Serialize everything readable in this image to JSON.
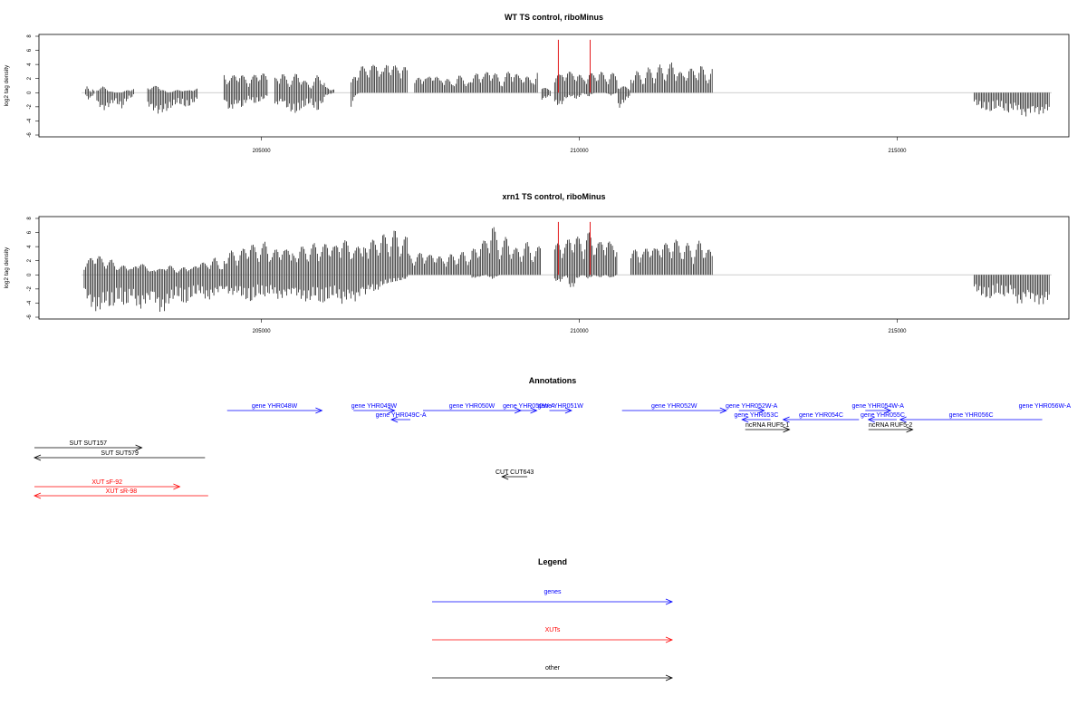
{
  "chart_data": [
    {
      "type": "bar",
      "title": "WT TS control, riboMinus",
      "ylabel": "log2 tag density",
      "xlim": [
        201500,
        217700
      ],
      "ylim": [
        -6,
        8
      ],
      "xticks": [
        205000,
        210000,
        215000
      ],
      "yticks": [
        -6,
        -4,
        -2,
        0,
        2,
        4,
        6,
        8
      ],
      "grid": false,
      "baseline_color": "#bdbdbd",
      "bar_color": "#000000",
      "highlight_color": "#e41a1c",
      "highlight_lines": [
        {
          "x": 209670,
          "y": 7.5
        },
        {
          "x": 210170,
          "y": 7.5
        }
      ],
      "segments": [
        {
          "x": [
            202200,
            202400
          ],
          "positive": [
            0,
            1.2,
            0.5,
            0,
            0.8,
            0
          ],
          "negative": [
            0,
            0.6,
            1.0,
            0.8,
            0.3,
            0
          ]
        },
        {
          "x": [
            202400,
            203000
          ],
          "positive": [
            0.5,
            0.9,
            0.3,
            0,
            0,
            0.4,
            0.6
          ],
          "negative": [
            1.5,
            2.6,
            2.0,
            1.2,
            2.4,
            1.0,
            0.5
          ]
        },
        {
          "x": [
            203200,
            204000
          ],
          "positive": [
            0.8,
            1.0,
            0,
            0.4,
            0.3,
            0.6
          ],
          "negative": [
            1.8,
            3.0,
            2.6,
            1.5,
            2.2,
            1.0
          ]
        },
        {
          "x": [
            204400,
            205100
          ],
          "positive": [
            2.8,
            2.0,
            3.0,
            2.5,
            1.8,
            2.6,
            3.2,
            2.2
          ],
          "negative": [
            1.0,
            2.8,
            1.5,
            2.2,
            0.8,
            1.6,
            1.2,
            0.5
          ]
        },
        {
          "x": [
            205200,
            206000
          ],
          "positive": [
            2.2,
            3.0,
            1.5,
            2.8,
            2.0,
            1.0,
            2.5,
            1.8
          ],
          "negative": [
            2.0,
            1.2,
            2.6,
            3.0,
            2.2,
            1.5,
            2.8,
            1.0
          ]
        },
        {
          "x": [
            206000,
            206150
          ],
          "positive": [
            0.8,
            0.5
          ],
          "negative": [
            0.4,
            0
          ]
        },
        {
          "x": [
            206400,
            207300
          ],
          "positive": [
            1.5,
            3.0,
            4.0,
            3.5,
            4.5,
            3.8,
            4.6,
            3.0,
            5.0,
            4.2,
            3.5,
            4.8,
            3.2
          ],
          "negative": [
            2.0,
            0.3,
            0,
            0,
            0,
            0,
            0,
            0,
            0,
            0,
            0,
            0,
            0
          ]
        },
        {
          "x": [
            207400,
            208300
          ],
          "positive": [
            1.5,
            2.8,
            2.0,
            3.2,
            1.8,
            2.5,
            1.2,
            2.6,
            2.0,
            1.5
          ],
          "negative": [
            0,
            0,
            0,
            0,
            0,
            0,
            0,
            0,
            0,
            0
          ]
        },
        {
          "x": [
            208300,
            209350
          ],
          "positive": [
            1.8,
            3.2,
            2.5,
            3.5,
            2.8,
            1.5,
            3.0,
            3.4,
            2.2,
            2.8,
            1.6,
            3.2
          ],
          "negative": [
            0,
            0,
            0,
            0,
            0,
            0,
            0,
            0,
            0,
            0,
            0,
            0
          ]
        },
        {
          "x": [
            209400,
            209550
          ],
          "positive": [
            0.8,
            0.5
          ],
          "negative": [
            1.0,
            0.5
          ]
        },
        {
          "x": [
            209600,
            210600
          ],
          "positive": [
            3.0,
            2.5,
            3.5,
            2.8,
            3.2,
            2.0,
            3.0,
            2.6,
            3.4,
            2.2,
            3.0,
            2.4
          ],
          "negative": [
            1.5,
            2.0,
            0.8,
            0.5,
            1.0,
            0,
            0.6,
            0,
            0,
            0,
            0.4,
            0
          ]
        },
        {
          "x": [
            210600,
            210800
          ],
          "positive": [
            1.0,
            0.8
          ],
          "negative": [
            2.4,
            0.5
          ]
        },
        {
          "x": [
            210800,
            212100
          ],
          "positive": [
            2.5,
            3.2,
            2.0,
            3.6,
            2.8,
            4.0,
            3.0,
            4.4,
            3.4,
            2.6,
            3.8,
            3.0,
            4.2,
            2.4,
            3.5
          ],
          "negative": [
            0,
            0,
            0,
            0,
            0,
            0,
            0,
            0,
            0,
            0,
            0,
            0,
            0,
            0,
            0
          ]
        },
        {
          "x": [
            216200,
            217400
          ],
          "positive": [
            0,
            0,
            0,
            0,
            0,
            0,
            0,
            0,
            0,
            0
          ],
          "negative": [
            1.5,
            2.4,
            2.8,
            2.0,
            3.0,
            2.2,
            3.6,
            2.6,
            3.2,
            2.4
          ]
        }
      ]
    },
    {
      "type": "bar",
      "title": "xrn1 TS control, riboMinus",
      "ylabel": "log2 tag density",
      "xlim": [
        201500,
        217700
      ],
      "ylim": [
        -6,
        8
      ],
      "xticks": [
        205000,
        210000,
        215000
      ],
      "yticks": [
        -6,
        -4,
        -2,
        0,
        2,
        4,
        6,
        8
      ],
      "grid": false,
      "baseline_color": "#bdbdbd",
      "bar_color": "#000000",
      "highlight_color": "#e41a1c",
      "highlight_lines": [
        {
          "x": 209670,
          "y": 7.5
        },
        {
          "x": 210170,
          "y": 7.5
        }
      ],
      "segments": [
        {
          "x": [
            202200,
            203300
          ],
          "positive": [
            1.5,
            2.5,
            3.0,
            1.8,
            2.2,
            1.0,
            1.5,
            0.8,
            2.0,
            1.2,
            0.6
          ],
          "negative": [
            2.5,
            4.5,
            5.5,
            4.0,
            5.0,
            3.5,
            4.8,
            3.0,
            5.2,
            4.0,
            3.2
          ]
        },
        {
          "x": [
            203300,
            204400
          ],
          "positive": [
            1.0,
            0.8,
            1.5,
            0.5,
            1.2,
            0.9,
            2.0,
            1.5,
            2.5,
            1.0
          ],
          "negative": [
            3.5,
            5.8,
            4.0,
            3.0,
            4.5,
            3.2,
            2.5,
            3.8,
            2.8,
            2.0
          ]
        },
        {
          "x": [
            204400,
            205500
          ],
          "positive": [
            2.5,
            3.5,
            2.8,
            4.0,
            4.5,
            3.6,
            4.8,
            3.0,
            4.2,
            3.5,
            4.6
          ],
          "negative": [
            2.0,
            3.0,
            2.5,
            3.5,
            4.0,
            2.8,
            3.2,
            2.4,
            3.6,
            3.0,
            2.6
          ]
        },
        {
          "x": [
            205500,
            206600
          ],
          "positive": [
            3.0,
            4.2,
            3.5,
            4.6,
            3.8,
            5.0,
            4.0,
            5.5,
            4.4,
            3.6,
            5.2
          ],
          "negative": [
            2.6,
            3.4,
            4.0,
            3.0,
            4.4,
            3.6,
            2.8,
            4.2,
            3.2,
            3.8,
            2.4
          ]
        },
        {
          "x": [
            206600,
            207300
          ],
          "positive": [
            4.0,
            5.5,
            4.5,
            6.0,
            5.0,
            6.5,
            4.8,
            5.6
          ],
          "negative": [
            3.0,
            2.0,
            2.5,
            1.5,
            1.2,
            1.0,
            0.8,
            0.5
          ]
        },
        {
          "x": [
            207300,
            208300
          ],
          "positive": [
            3.0,
            2.5,
            3.5,
            2.8,
            3.2,
            2.2,
            3.0,
            2.6,
            3.4,
            2.4
          ],
          "negative": [
            0,
            0,
            0,
            0,
            0,
            0,
            0,
            0,
            0,
            0
          ]
        },
        {
          "x": [
            208300,
            209400
          ],
          "positive": [
            3.5,
            4.5,
            5.0,
            7.5,
            4.2,
            5.5,
            4.0,
            3.6,
            4.8,
            3.2,
            4.4
          ],
          "negative": [
            0.5,
            0.3,
            0,
            0.6,
            0,
            0,
            0,
            0,
            0,
            0,
            0
          ]
        },
        {
          "x": [
            209600,
            210600
          ],
          "positive": [
            4.0,
            5.0,
            4.5,
            6.0,
            5.5,
            4.8,
            6.2,
            5.0,
            4.6,
            5.8,
            4.4,
            5.2
          ],
          "negative": [
            0.8,
            1.0,
            0,
            2.4,
            0.5,
            0,
            0.6,
            0,
            0.4,
            0,
            0.5,
            0
          ]
        },
        {
          "x": [
            210800,
            212100
          ],
          "positive": [
            3.0,
            4.0,
            3.2,
            4.8,
            3.6,
            5.0,
            4.2,
            5.5,
            3.8,
            4.6,
            3.4,
            5.0,
            4.0,
            3.2
          ],
          "negative": [
            0,
            0,
            0,
            0,
            0,
            0,
            0,
            0,
            0,
            0,
            0,
            0,
            0,
            0
          ]
        },
        {
          "x": [
            216200,
            217400
          ],
          "positive": [
            0,
            0,
            0,
            0,
            0,
            0,
            0,
            0,
            0,
            0,
            0
          ],
          "negative": [
            2.0,
            3.0,
            3.6,
            2.6,
            3.2,
            2.4,
            4.6,
            3.0,
            3.8,
            4.4,
            3.4
          ]
        }
      ]
    }
  ],
  "annotations": {
    "title": "Annotations",
    "xlim": [
      201500,
      217700
    ],
    "features": [
      {
        "label": "gene YHR048W",
        "start": 204550,
        "end": 206050,
        "row": 0,
        "strand": "+",
        "color": "#0000ff"
      },
      {
        "label": "gene YHR049W",
        "start": 206550,
        "end": 207200,
        "row": 0,
        "strand": "+",
        "color": "#0000ff"
      },
      {
        "label": "gene YHR049C-A",
        "start": 207150,
        "end": 207450,
        "row": 1,
        "strand": "-",
        "color": "#0000ff"
      },
      {
        "label": "gene YHR050W",
        "start": 207650,
        "end": 209200,
        "row": 0,
        "strand": "+",
        "color": "#0000ff"
      },
      {
        "label": "gene YHR050W-A",
        "start": 209200,
        "end": 209450,
        "row": 0,
        "strand": "+",
        "color": "#0000ff"
      },
      {
        "label": "gene YHR051W",
        "start": 209650,
        "end": 210000,
        "row": 0,
        "strand": "+",
        "color": "#0000ff"
      },
      {
        "label": "gene YHR052W",
        "start": 210800,
        "end": 212450,
        "row": 0,
        "strand": "+",
        "color": "#0000ff"
      },
      {
        "label": "gene YHR052W-A",
        "start": 212650,
        "end": 213050,
        "row": 0,
        "strand": "+",
        "color": "#0000ff"
      },
      {
        "label": "gene YHR053C",
        "start": 212700,
        "end": 213150,
        "row": 1,
        "strand": "-",
        "color": "#0000ff"
      },
      {
        "label": "gene YHR054C",
        "start": 213350,
        "end": 214550,
        "row": 1,
        "strand": "-",
        "color": "#0000ff"
      },
      {
        "label": "gene YHR054W-A",
        "start": 214650,
        "end": 215050,
        "row": 0,
        "strand": "+",
        "color": "#0000ff"
      },
      {
        "label": "gene YHR055C",
        "start": 214700,
        "end": 215150,
        "row": 1,
        "strand": "-",
        "color": "#0000ff"
      },
      {
        "label": "gene YHR056C",
        "start": 215200,
        "end": 217450,
        "row": 1,
        "strand": "-",
        "color": "#0000ff"
      },
      {
        "label": "gene YHR056W-A",
        "start": 217450,
        "end": 217450,
        "row": 0,
        "strand": "+",
        "color": "#0000ff"
      },
      {
        "label": "ncRNA RUF5-1",
        "start": 212750,
        "end": 213450,
        "row": 2,
        "strand": "+",
        "color": "#000000"
      },
      {
        "label": "ncRNA RUF5-2",
        "start": 214700,
        "end": 215400,
        "row": 2,
        "strand": "+",
        "color": "#000000"
      },
      {
        "label": "SUT SUT157",
        "start": 201500,
        "end": 203200,
        "row": 3,
        "strand": "+",
        "color": "#000000"
      },
      {
        "label": "SUT SUT579",
        "start": 201500,
        "end": 204200,
        "row": 4,
        "strand": "-",
        "color": "#000000"
      },
      {
        "label": "CUT CUT643",
        "start": 208900,
        "end": 209300,
        "row": 5,
        "strand": "-",
        "color": "#000000"
      },
      {
        "label": "XUT sF-92",
        "start": 201500,
        "end": 203800,
        "row": 6,
        "strand": "+",
        "color": "#ff0000"
      },
      {
        "label": "XUT sR-98",
        "start": 201500,
        "end": 204250,
        "row": 7,
        "strand": "-",
        "color": "#ff0000"
      }
    ]
  },
  "legend": {
    "title": "Legend",
    "items": [
      {
        "label": "genes",
        "color": "#0000ff"
      },
      {
        "label": "XUTs",
        "color": "#ff0000"
      },
      {
        "label": "other",
        "color": "#000000"
      }
    ]
  }
}
